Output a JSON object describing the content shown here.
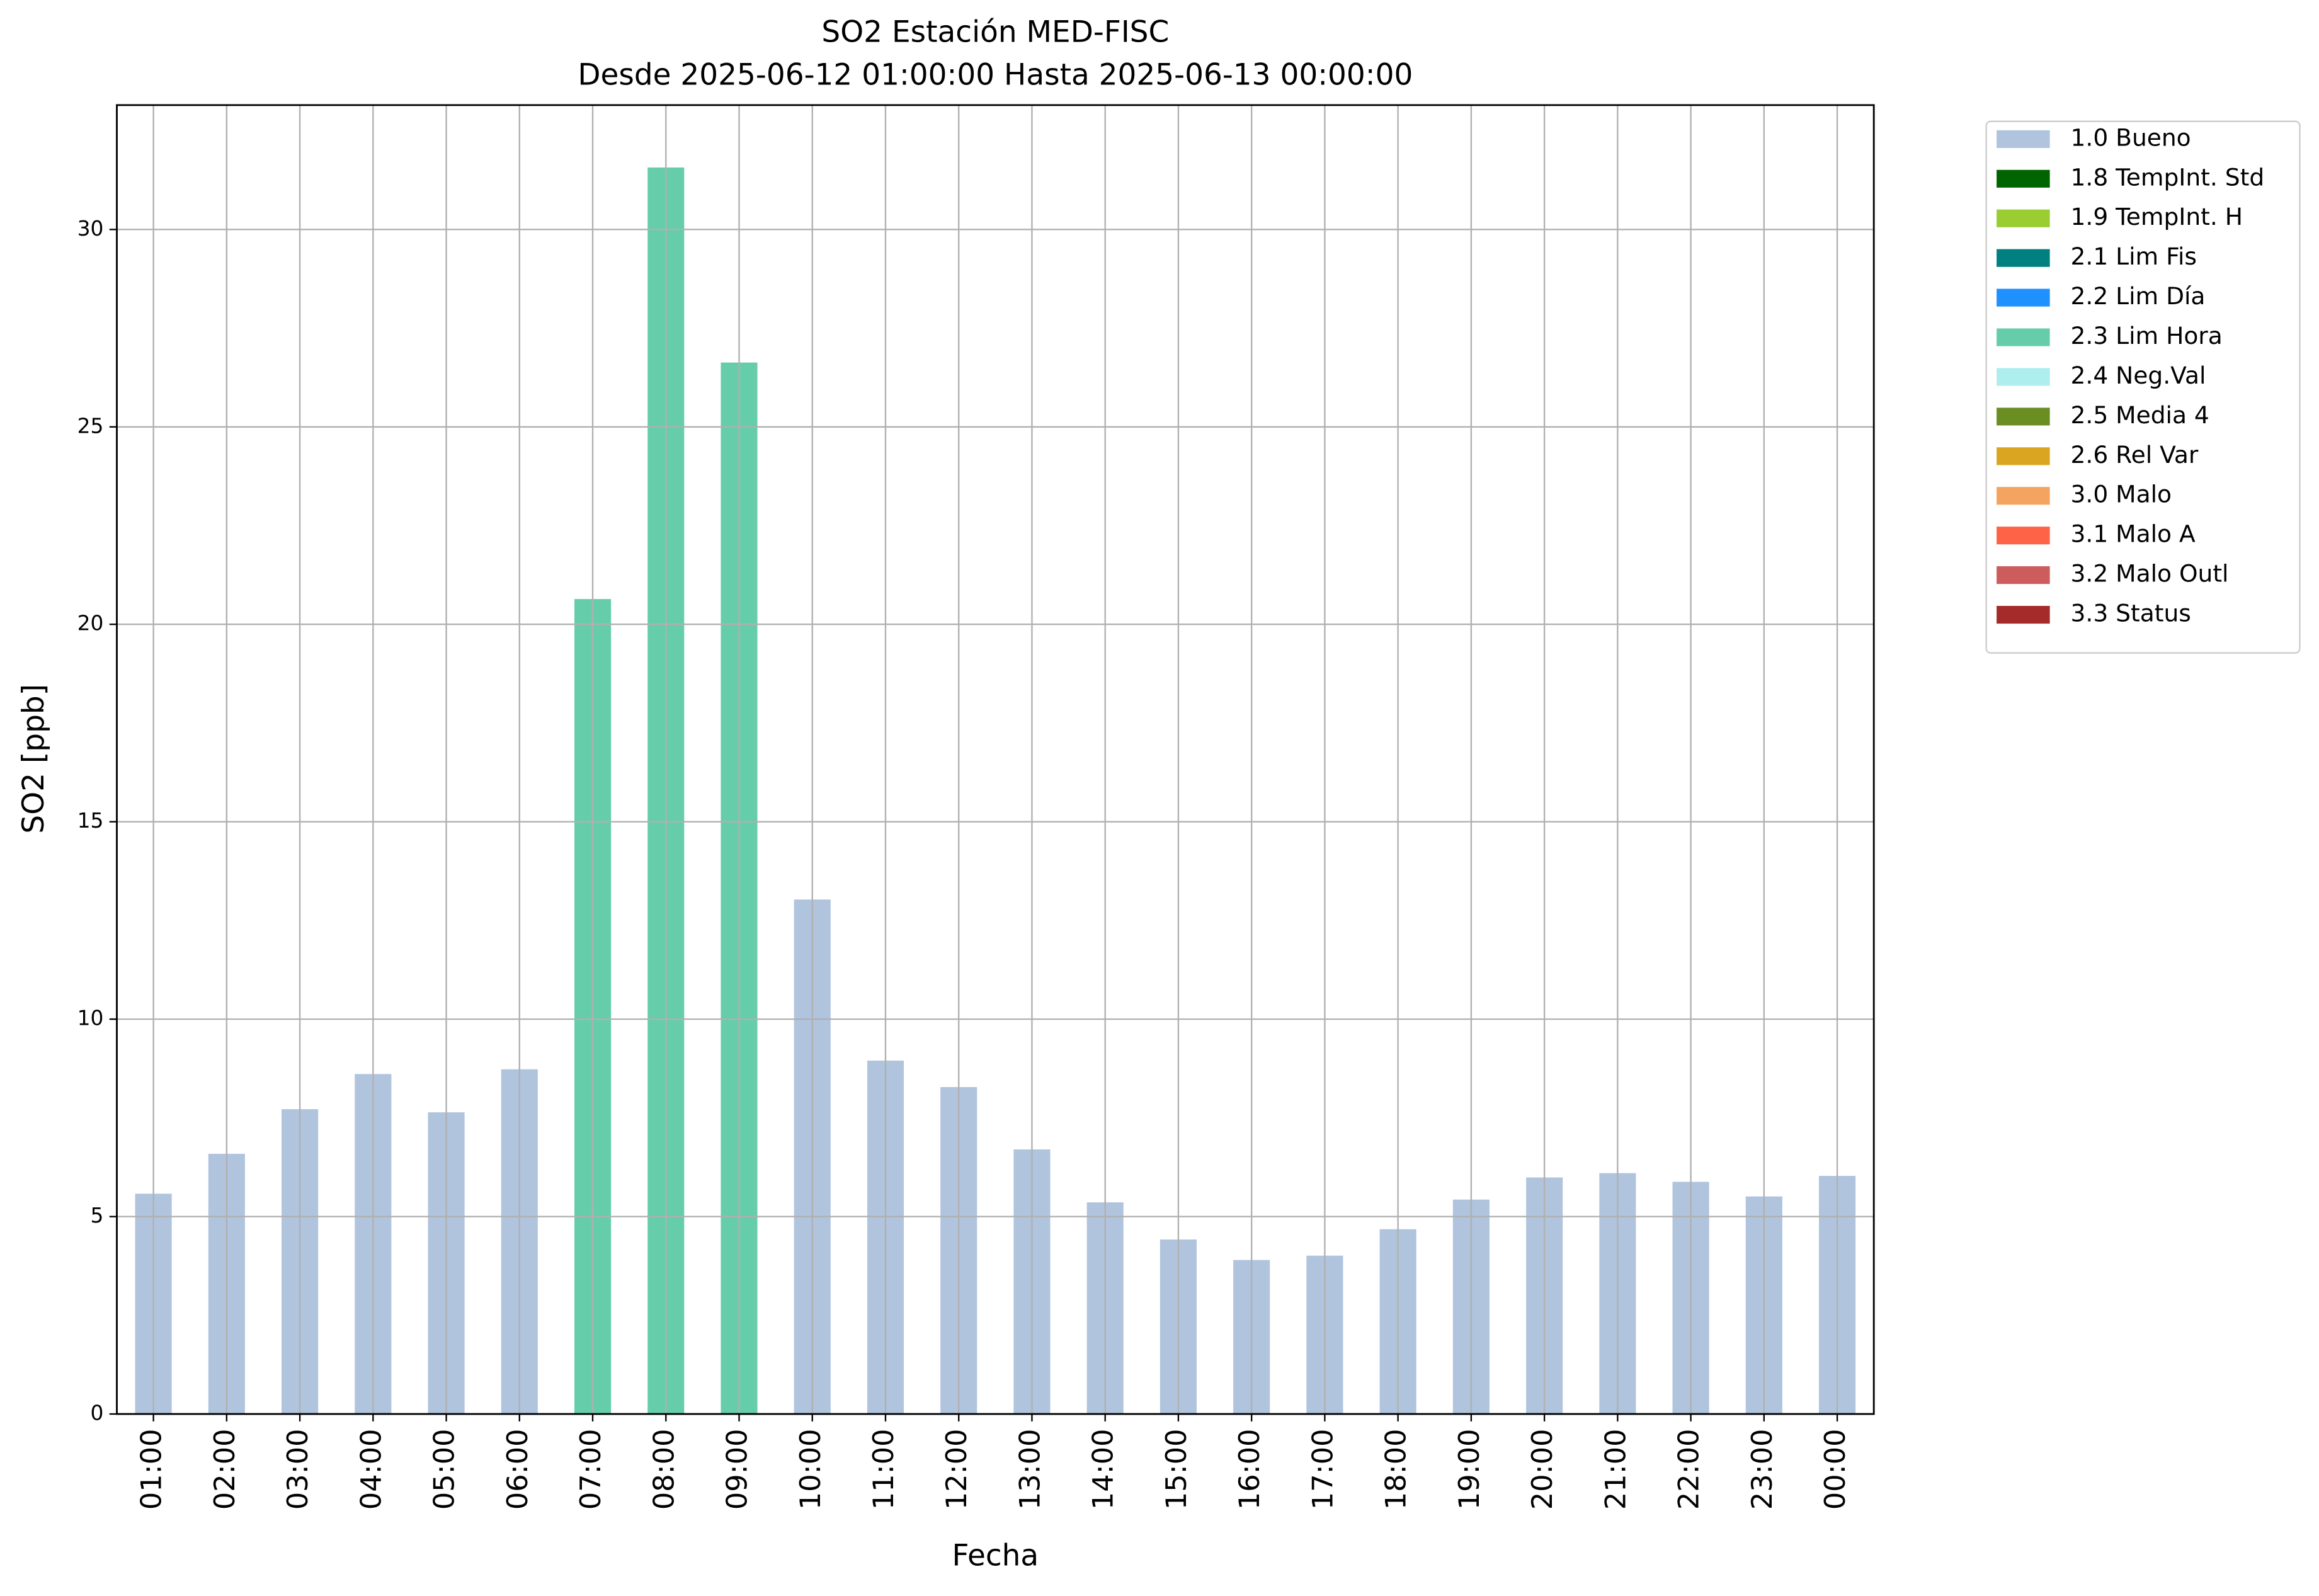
{
  "chart_data": {
    "type": "stacked_bar",
    "title": "SO2 Estación MED-FISC",
    "subtitle": "Desde 2025-06-12 01:00:00 Hasta 2025-06-13 00:00:00",
    "x_label": "Fecha",
    "y_label": "SO2 [ppb]",
    "categories": [
      "01:00",
      "02:00",
      "03:00",
      "04:00",
      "05:00",
      "06:00",
      "07:00",
      "08:00",
      "09:00",
      "10:00",
      "11:00",
      "12:00",
      "13:00",
      "14:00",
      "15:00",
      "16:00",
      "17:00",
      "18:00",
      "19:00",
      "20:00",
      "21:00",
      "22:00",
      "23:00",
      "00:00"
    ],
    "series": [
      {
        "name": "1.0 Bueno",
        "color": "#b0c4de",
        "values": [
          5.58,
          6.59,
          7.72,
          8.61,
          7.64,
          8.73,
          null,
          null,
          null,
          13.03,
          8.95,
          8.28,
          6.7,
          5.36,
          4.42,
          3.9,
          4.01,
          4.68,
          5.43,
          5.99,
          6.1,
          5.88,
          5.51,
          6.03
        ]
      },
      {
        "name": "1.8 TempInt. Std",
        "color": "#006400",
        "values": [
          null,
          null,
          null,
          null,
          null,
          null,
          null,
          null,
          null,
          null,
          null,
          null,
          null,
          null,
          null,
          null,
          null,
          null,
          null,
          null,
          null,
          null,
          null,
          null
        ]
      },
      {
        "name": "1.9 TempInt. H",
        "color": "#9acd32",
        "values": [
          null,
          null,
          null,
          null,
          null,
          null,
          null,
          null,
          null,
          null,
          null,
          null,
          null,
          null,
          null,
          null,
          null,
          null,
          null,
          null,
          null,
          null,
          null,
          null
        ]
      },
      {
        "name": "2.1 Lim Fis",
        "color": "#008080",
        "values": [
          null,
          null,
          null,
          null,
          null,
          null,
          null,
          null,
          null,
          null,
          null,
          null,
          null,
          null,
          null,
          null,
          null,
          null,
          null,
          null,
          null,
          null,
          null,
          null
        ]
      },
      {
        "name": "2.2 Lim Día",
        "color": "#1e90ff",
        "values": [
          null,
          null,
          null,
          null,
          null,
          null,
          null,
          null,
          null,
          null,
          null,
          null,
          null,
          null,
          null,
          null,
          null,
          null,
          null,
          null,
          null,
          null,
          null,
          null
        ]
      },
      {
        "name": "2.3 Lim Hora",
        "color": "#66cdaa",
        "values": [
          null,
          null,
          null,
          null,
          null,
          null,
          20.64,
          31.57,
          26.63,
          null,
          null,
          null,
          null,
          null,
          null,
          null,
          null,
          null,
          null,
          null,
          null,
          null,
          null,
          null
        ]
      },
      {
        "name": "2.4 Neg.Val",
        "color": "#afeeee",
        "values": [
          null,
          null,
          null,
          null,
          null,
          null,
          null,
          null,
          null,
          null,
          null,
          null,
          null,
          null,
          null,
          null,
          null,
          null,
          null,
          null,
          null,
          null,
          null,
          null
        ]
      },
      {
        "name": "2.5 Media 4",
        "color": "#6b8e23",
        "values": [
          null,
          null,
          null,
          null,
          null,
          null,
          null,
          null,
          null,
          null,
          null,
          null,
          null,
          null,
          null,
          null,
          null,
          null,
          null,
          null,
          null,
          null,
          null,
          null
        ]
      },
      {
        "name": "2.6 Rel Var",
        "color": "#daa520",
        "values": [
          null,
          null,
          null,
          null,
          null,
          null,
          null,
          null,
          null,
          null,
          null,
          null,
          null,
          null,
          null,
          null,
          null,
          null,
          null,
          null,
          null,
          null,
          null,
          null
        ]
      },
      {
        "name": "3.0 Malo",
        "color": "#f4a460",
        "values": [
          null,
          null,
          null,
          null,
          null,
          null,
          null,
          null,
          null,
          null,
          null,
          null,
          null,
          null,
          null,
          null,
          null,
          null,
          null,
          null,
          null,
          null,
          null,
          null
        ]
      },
      {
        "name": "3.1 Malo A",
        "color": "#ff6347",
        "values": [
          null,
          null,
          null,
          null,
          null,
          null,
          null,
          null,
          null,
          null,
          null,
          null,
          null,
          null,
          null,
          null,
          null,
          null,
          null,
          null,
          null,
          null,
          null,
          null
        ]
      },
      {
        "name": "3.2 Malo Outl",
        "color": "#cd5c5c",
        "values": [
          null,
          null,
          null,
          null,
          null,
          null,
          null,
          null,
          null,
          null,
          null,
          null,
          null,
          null,
          null,
          null,
          null,
          null,
          null,
          null,
          null,
          null,
          null,
          null
        ]
      },
      {
        "name": "3.3 Status",
        "color": "#a52a2a",
        "values": [
          null,
          null,
          null,
          null,
          null,
          null,
          null,
          null,
          null,
          null,
          null,
          null,
          null,
          null,
          null,
          null,
          null,
          null,
          null,
          null,
          null,
          null,
          null,
          null
        ]
      }
    ],
    "ylim": [
      0,
      33.15
    ],
    "yticks": [
      0,
      5,
      10,
      15,
      20,
      25,
      30
    ],
    "grid": true,
    "legend": "outside-upper-right"
  }
}
